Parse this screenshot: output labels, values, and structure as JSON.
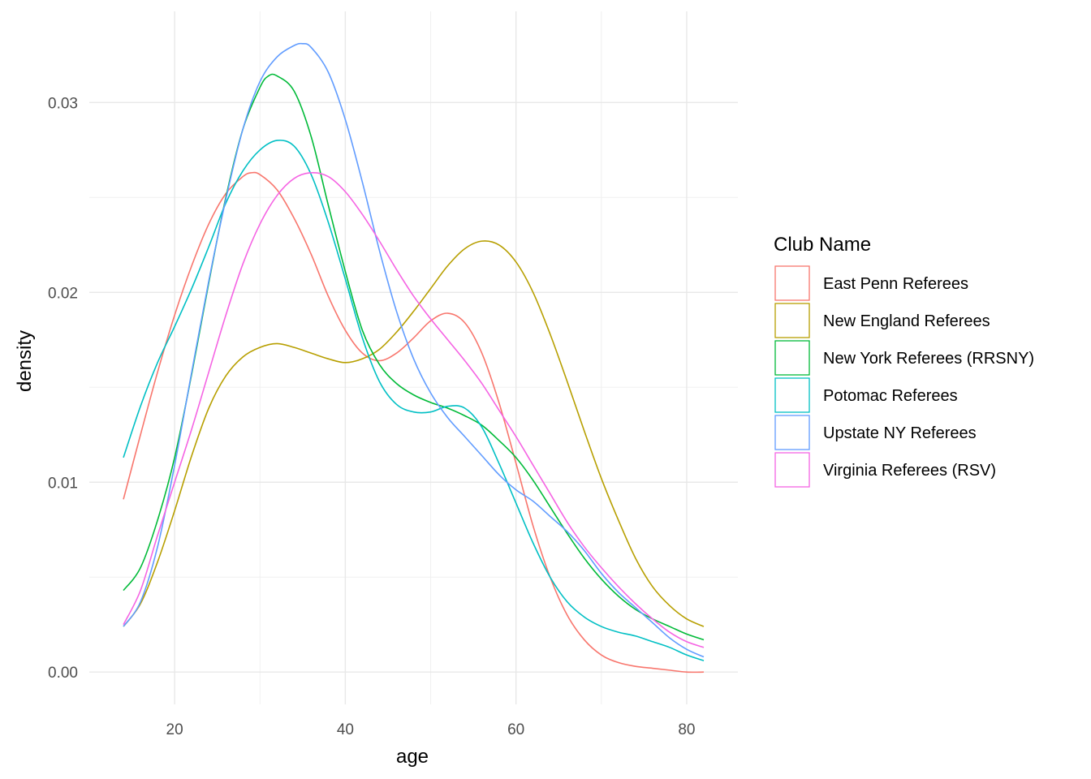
{
  "chart_data": {
    "type": "line",
    "xlabel": "age",
    "ylabel": "density",
    "xlim": [
      10,
      86
    ],
    "ylim": [
      -0.0017,
      0.0348
    ],
    "x_ticks": [
      20,
      40,
      60,
      80
    ],
    "x_tick_labels": [
      "20",
      "40",
      "60",
      "80"
    ],
    "y_ticks": [
      0,
      0.01,
      0.02,
      0.03
    ],
    "y_tick_labels": [
      "0.00",
      "0.01",
      "0.02",
      "0.03"
    ],
    "grid": true,
    "legend": {
      "title": "Club Name",
      "position": "right"
    },
    "series": [
      {
        "name": "East Penn Referees",
        "color": "#F8766D",
        "points": [
          [
            14,
            0.0091
          ],
          [
            16,
            0.0125
          ],
          [
            18,
            0.0158
          ],
          [
            20,
            0.0188
          ],
          [
            22,
            0.0214
          ],
          [
            24,
            0.0236
          ],
          [
            26,
            0.0252
          ],
          [
            28,
            0.0261
          ],
          [
            29,
            0.0263
          ],
          [
            30,
            0.0262
          ],
          [
            32,
            0.0254
          ],
          [
            34,
            0.0239
          ],
          [
            36,
            0.022
          ],
          [
            38,
            0.0198
          ],
          [
            40,
            0.018
          ],
          [
            42,
            0.0168
          ],
          [
            44,
            0.0164
          ],
          [
            46,
            0.0168
          ],
          [
            48,
            0.0176
          ],
          [
            50,
            0.0185
          ],
          [
            52,
            0.0189
          ],
          [
            54,
            0.0184
          ],
          [
            56,
            0.0168
          ],
          [
            58,
            0.0142
          ],
          [
            60,
            0.011
          ],
          [
            62,
            0.0077
          ],
          [
            64,
            0.005
          ],
          [
            66,
            0.003
          ],
          [
            68,
            0.0017
          ],
          [
            70,
            0.0009
          ],
          [
            72,
            0.0005
          ],
          [
            74,
            0.0003
          ],
          [
            76,
            0.0002
          ],
          [
            78,
            0.0001
          ],
          [
            80,
            0.0
          ],
          [
            82,
            0.0
          ]
        ]
      },
      {
        "name": "New England Referees",
        "color": "#B79F00",
        "points": [
          [
            14,
            0.0024
          ],
          [
            16,
            0.0036
          ],
          [
            18,
            0.0058
          ],
          [
            20,
            0.0085
          ],
          [
            22,
            0.0114
          ],
          [
            24,
            0.0139
          ],
          [
            26,
            0.0156
          ],
          [
            28,
            0.0166
          ],
          [
            30,
            0.0171
          ],
          [
            32,
            0.0173
          ],
          [
            34,
            0.0171
          ],
          [
            36,
            0.0168
          ],
          [
            38,
            0.0165
          ],
          [
            40,
            0.0163
          ],
          [
            42,
            0.0165
          ],
          [
            44,
            0.017
          ],
          [
            46,
            0.0179
          ],
          [
            48,
            0.019
          ],
          [
            50,
            0.0202
          ],
          [
            52,
            0.0214
          ],
          [
            54,
            0.0223
          ],
          [
            56,
            0.0227
          ],
          [
            58,
            0.0225
          ],
          [
            60,
            0.0216
          ],
          [
            62,
            0.02
          ],
          [
            64,
            0.0178
          ],
          [
            66,
            0.0153
          ],
          [
            68,
            0.0127
          ],
          [
            70,
            0.0102
          ],
          [
            72,
            0.008
          ],
          [
            74,
            0.006
          ],
          [
            76,
            0.0045
          ],
          [
            78,
            0.0035
          ],
          [
            80,
            0.0028
          ],
          [
            82,
            0.0024
          ]
        ]
      },
      {
        "name": "New York Referees (RRSNY)",
        "color": "#00BA38",
        "points": [
          [
            14,
            0.0043
          ],
          [
            16,
            0.0055
          ],
          [
            18,
            0.008
          ],
          [
            20,
            0.0113
          ],
          [
            22,
            0.0157
          ],
          [
            24,
            0.0205
          ],
          [
            26,
            0.025
          ],
          [
            28,
            0.0286
          ],
          [
            30,
            0.0308
          ],
          [
            31,
            0.0314
          ],
          [
            32,
            0.0314
          ],
          [
            34,
            0.0306
          ],
          [
            36,
            0.0282
          ],
          [
            38,
            0.0246
          ],
          [
            40,
            0.0211
          ],
          [
            42,
            0.018
          ],
          [
            44,
            0.0162
          ],
          [
            46,
            0.0152
          ],
          [
            48,
            0.0146
          ],
          [
            50,
            0.0142
          ],
          [
            52,
            0.0139
          ],
          [
            54,
            0.0135
          ],
          [
            56,
            0.013
          ],
          [
            58,
            0.0122
          ],
          [
            60,
            0.0113
          ],
          [
            62,
            0.0101
          ],
          [
            64,
            0.0087
          ],
          [
            66,
            0.0073
          ],
          [
            68,
            0.006
          ],
          [
            70,
            0.0049
          ],
          [
            72,
            0.004
          ],
          [
            74,
            0.0033
          ],
          [
            76,
            0.0028
          ],
          [
            78,
            0.0024
          ],
          [
            80,
            0.002
          ],
          [
            82,
            0.0017
          ]
        ]
      },
      {
        "name": "Potomac Referees",
        "color": "#00BFC4",
        "points": [
          [
            14,
            0.0113
          ],
          [
            16,
            0.014
          ],
          [
            18,
            0.0163
          ],
          [
            20,
            0.0182
          ],
          [
            22,
            0.0202
          ],
          [
            24,
            0.0224
          ],
          [
            26,
            0.0247
          ],
          [
            28,
            0.0264
          ],
          [
            30,
            0.0275
          ],
          [
            32,
            0.028
          ],
          [
            34,
            0.0277
          ],
          [
            36,
            0.0262
          ],
          [
            38,
            0.0237
          ],
          [
            40,
            0.0207
          ],
          [
            42,
            0.0176
          ],
          [
            44,
            0.0153
          ],
          [
            46,
            0.0141
          ],
          [
            48,
            0.0137
          ],
          [
            50,
            0.0137
          ],
          [
            52,
            0.014
          ],
          [
            54,
            0.0139
          ],
          [
            56,
            0.0129
          ],
          [
            58,
            0.011
          ],
          [
            60,
            0.0089
          ],
          [
            62,
            0.0068
          ],
          [
            64,
            0.005
          ],
          [
            66,
            0.0037
          ],
          [
            68,
            0.0029
          ],
          [
            70,
            0.0024
          ],
          [
            72,
            0.0021
          ],
          [
            74,
            0.0019
          ],
          [
            76,
            0.0016
          ],
          [
            78,
            0.0013
          ],
          [
            80,
            0.0009
          ],
          [
            82,
            0.0006
          ]
        ]
      },
      {
        "name": "Upstate NY Referees",
        "color": "#619CFF",
        "points": [
          [
            14,
            0.0024
          ],
          [
            16,
            0.0037
          ],
          [
            18,
            0.0066
          ],
          [
            20,
            0.0109
          ],
          [
            22,
            0.0158
          ],
          [
            24,
            0.0206
          ],
          [
            26,
            0.0249
          ],
          [
            28,
            0.0286
          ],
          [
            30,
            0.0311
          ],
          [
            32,
            0.0324
          ],
          [
            34,
            0.033
          ],
          [
            35,
            0.0331
          ],
          [
            36,
            0.0329
          ],
          [
            38,
            0.0316
          ],
          [
            40,
            0.0291
          ],
          [
            42,
            0.0258
          ],
          [
            44,
            0.0222
          ],
          [
            46,
            0.019
          ],
          [
            48,
            0.0165
          ],
          [
            50,
            0.0147
          ],
          [
            52,
            0.0134
          ],
          [
            54,
            0.0124
          ],
          [
            56,
            0.0114
          ],
          [
            58,
            0.0104
          ],
          [
            60,
            0.0096
          ],
          [
            62,
            0.009
          ],
          [
            64,
            0.0082
          ],
          [
            66,
            0.0074
          ],
          [
            68,
            0.0064
          ],
          [
            70,
            0.0052
          ],
          [
            72,
            0.0042
          ],
          [
            74,
            0.0034
          ],
          [
            76,
            0.0026
          ],
          [
            78,
            0.0018
          ],
          [
            80,
            0.0012
          ],
          [
            82,
            0.0008
          ]
        ]
      },
      {
        "name": "Virginia Referees (RSV)",
        "color": "#F564E3",
        "points": [
          [
            14,
            0.0025
          ],
          [
            16,
            0.0043
          ],
          [
            18,
            0.0072
          ],
          [
            20,
            0.01
          ],
          [
            22,
            0.0128
          ],
          [
            24,
            0.0158
          ],
          [
            26,
            0.0188
          ],
          [
            28,
            0.0215
          ],
          [
            30,
            0.0236
          ],
          [
            32,
            0.0251
          ],
          [
            34,
            0.026
          ],
          [
            36,
            0.0263
          ],
          [
            38,
            0.0261
          ],
          [
            40,
            0.0253
          ],
          [
            42,
            0.0241
          ],
          [
            44,
            0.0227
          ],
          [
            46,
            0.0212
          ],
          [
            48,
            0.0198
          ],
          [
            50,
            0.0186
          ],
          [
            52,
            0.0175
          ],
          [
            54,
            0.0164
          ],
          [
            56,
            0.0152
          ],
          [
            58,
            0.0138
          ],
          [
            60,
            0.0124
          ],
          [
            62,
            0.0109
          ],
          [
            64,
            0.0094
          ],
          [
            66,
            0.0079
          ],
          [
            68,
            0.0066
          ],
          [
            70,
            0.0055
          ],
          [
            72,
            0.0045
          ],
          [
            74,
            0.0036
          ],
          [
            76,
            0.0028
          ],
          [
            78,
            0.0021
          ],
          [
            80,
            0.0016
          ],
          [
            82,
            0.0013
          ]
        ]
      }
    ]
  }
}
